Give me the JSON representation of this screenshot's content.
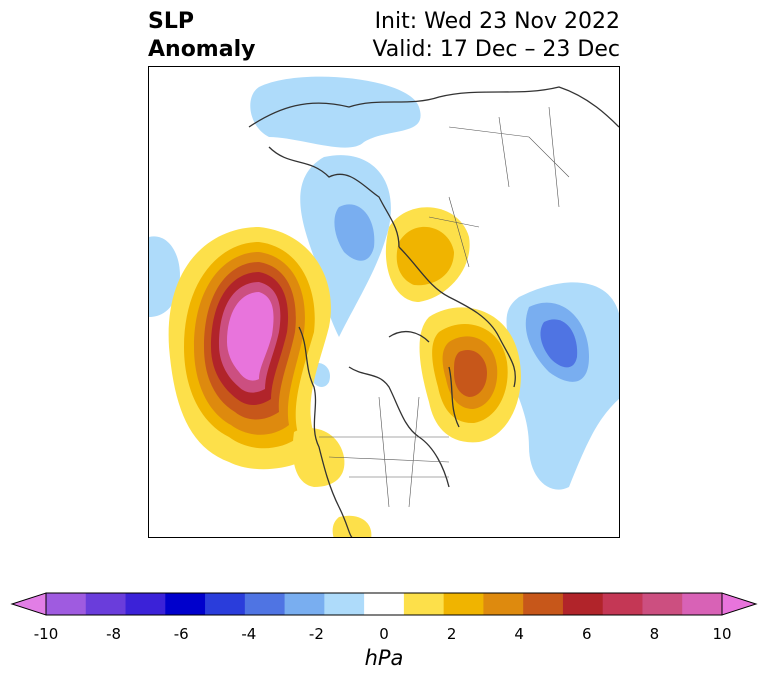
{
  "title": {
    "line1": "SLP",
    "line2": "Anomaly",
    "init": "Init: Wed 23 Nov 2022",
    "valid": "Valid: 17 Dec – 23 Dec"
  },
  "colorbar": {
    "units": "hPa",
    "tick_labels": [
      "-10",
      "-8",
      "-6",
      "-4",
      "-2",
      "0",
      "2",
      "4",
      "6",
      "8",
      "10"
    ],
    "colors": [
      "#e27ee6",
      "#9f5be0",
      "#6a3ddb",
      "#3b22d8",
      "#0000cc",
      "#2a3ddb",
      "#4f74e3",
      "#79aef0",
      "#aedbfa",
      "#ffffff",
      "#fde04a",
      "#f0b400",
      "#de8a0e",
      "#c7571a",
      "#b1242a",
      "#c43755",
      "#cc4f80",
      "#d862b6",
      "#e874dc"
    ]
  }
}
